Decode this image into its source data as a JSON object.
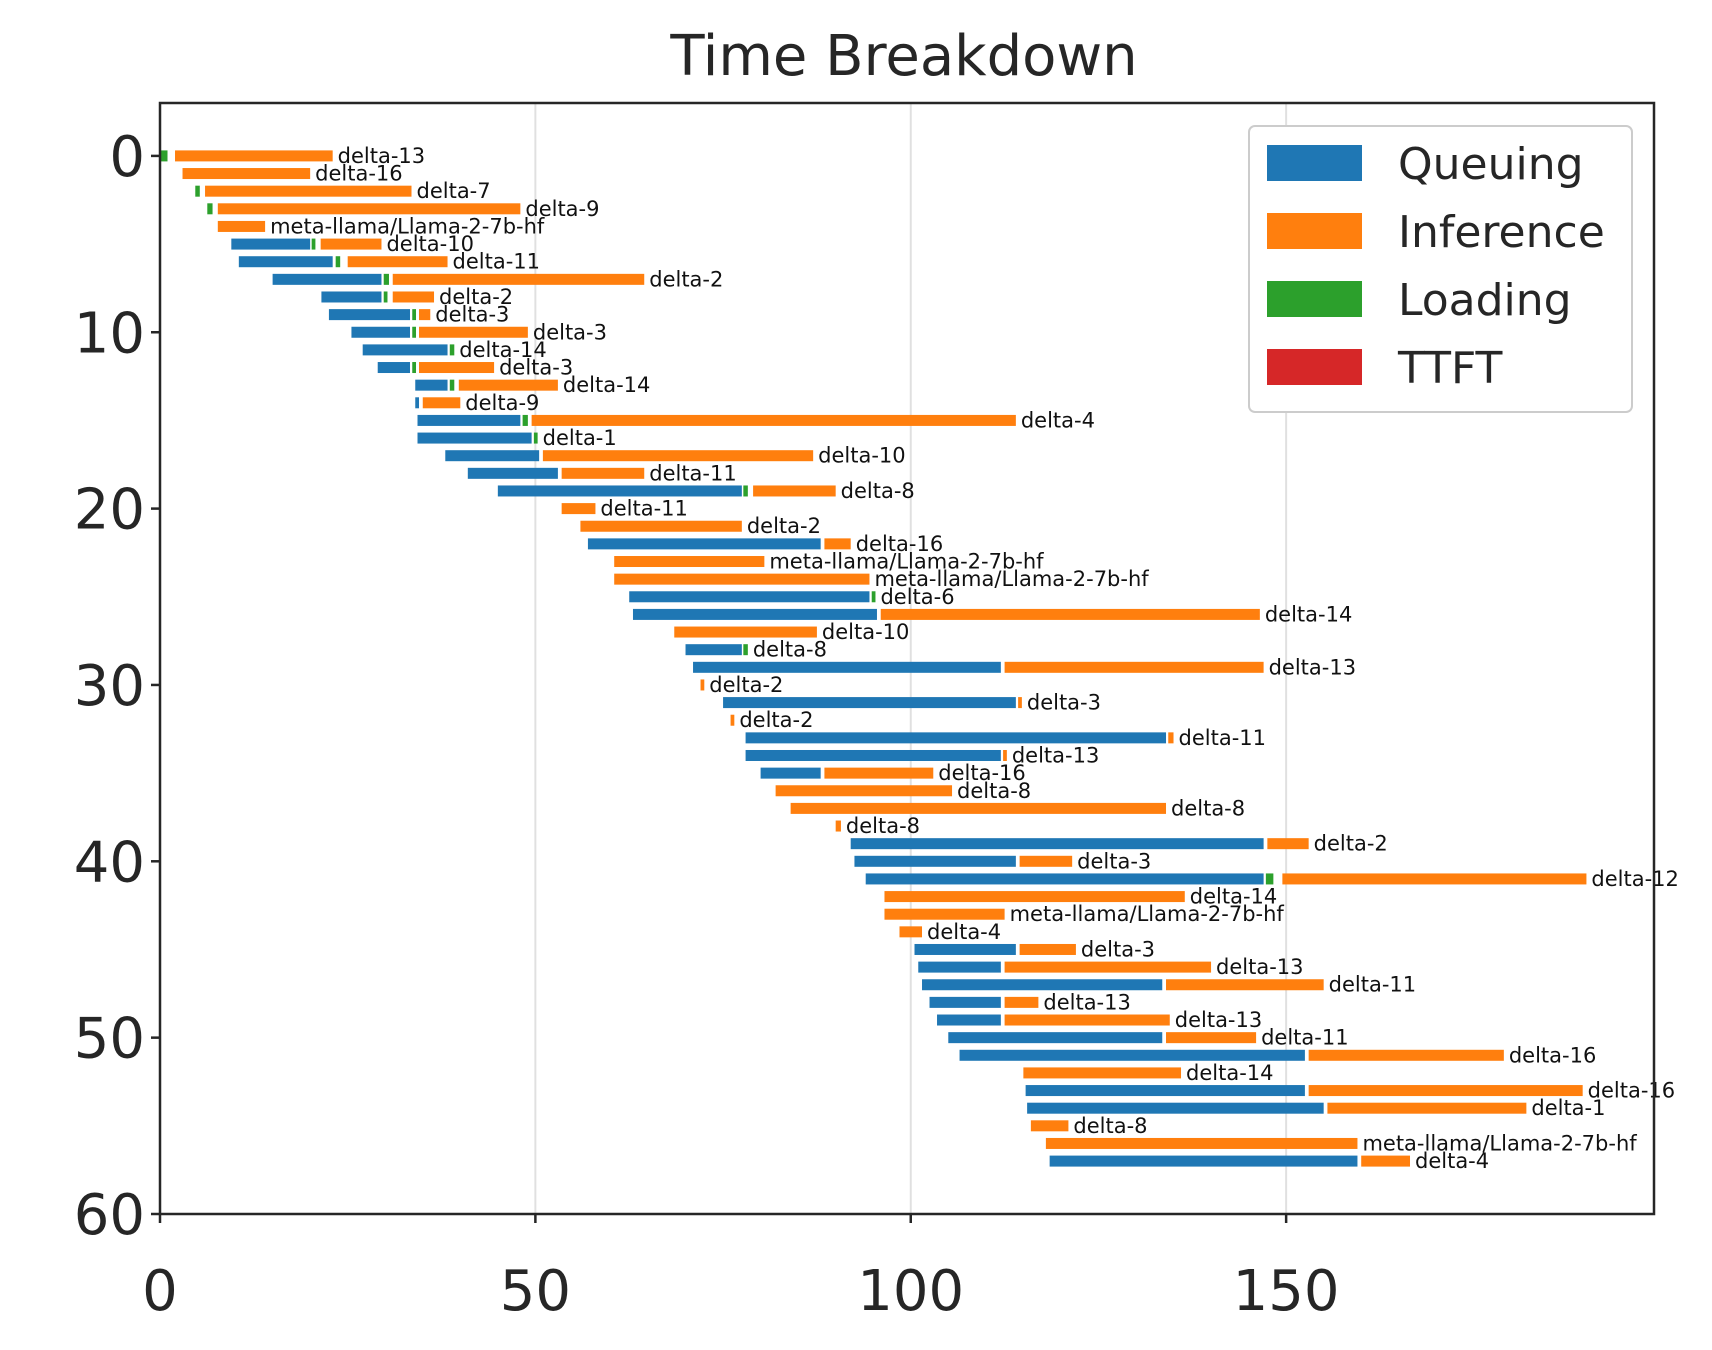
{
  "chart_data": {
    "type": "gantt",
    "title": "Time Breakdown",
    "xlabel": "",
    "ylabel": "",
    "xlim": [
      0,
      199
    ],
    "ylim": [
      60,
      -3
    ],
    "x_ticks": [
      0,
      50,
      100,
      150
    ],
    "y_ticks": [
      0,
      10,
      20,
      30,
      40,
      50,
      60
    ],
    "grid": "vertical",
    "legend_position": "top-right",
    "legend": [
      {
        "name": "Queuing",
        "color": "#1f77b4"
      },
      {
        "name": "Inference",
        "color": "#ff7f0e"
      },
      {
        "name": "Loading",
        "color": "#2ca02c"
      },
      {
        "name": "TTFT",
        "color": "#d62728"
      }
    ],
    "tasks": [
      {
        "row": 0,
        "label": "delta-13",
        "segments": [
          [
            "L",
            0,
            1
          ],
          [
            "I",
            2,
            23
          ]
        ]
      },
      {
        "row": 1,
        "label": "delta-16",
        "segments": [
          [
            "I",
            3,
            20
          ]
        ]
      },
      {
        "row": 2,
        "label": "delta-7",
        "segments": [
          [
            "L",
            4.7,
            5.3
          ],
          [
            "I",
            6,
            33.5
          ]
        ]
      },
      {
        "row": 3,
        "label": "delta-9",
        "segments": [
          [
            "L",
            6.3,
            7
          ],
          [
            "I",
            7.7,
            48
          ]
        ]
      },
      {
        "row": 4,
        "label": "meta-llama/Llama-2-7b-hf",
        "segments": [
          [
            "I",
            7.7,
            14
          ]
        ]
      },
      {
        "row": 5,
        "label": "delta-10",
        "segments": [
          [
            "Q",
            9.5,
            20
          ],
          [
            "L",
            20.2,
            20.7
          ],
          [
            "I",
            21.4,
            29.5
          ]
        ]
      },
      {
        "row": 6,
        "label": "delta-11",
        "segments": [
          [
            "Q",
            10.5,
            23
          ],
          [
            "L",
            23.4,
            24
          ],
          [
            "I",
            25,
            38.3
          ]
        ]
      },
      {
        "row": 7,
        "label": "delta-2",
        "segments": [
          [
            "Q",
            15,
            29.5
          ],
          [
            "L",
            29.8,
            30.5
          ],
          [
            "I",
            31,
            64.5
          ]
        ]
      },
      {
        "row": 8,
        "label": "delta-2",
        "segments": [
          [
            "Q",
            21.5,
            29.5
          ],
          [
            "L",
            29.8,
            30.3
          ],
          [
            "I",
            31,
            36.5
          ]
        ]
      },
      {
        "row": 9,
        "label": "delta-3",
        "segments": [
          [
            "Q",
            22.5,
            33.3
          ],
          [
            "L",
            33.6,
            34.1
          ],
          [
            "I",
            34.5,
            36
          ]
        ]
      },
      {
        "row": 10,
        "label": "delta-3",
        "segments": [
          [
            "Q",
            25.5,
            33.3
          ],
          [
            "L",
            33.6,
            34.1
          ],
          [
            "I",
            34.5,
            49
          ]
        ]
      },
      {
        "row": 11,
        "label": "delta-14",
        "segments": [
          [
            "Q",
            27,
            38.3
          ],
          [
            "L",
            38.6,
            39.2
          ]
        ]
      },
      {
        "row": 12,
        "label": "delta-3",
        "segments": [
          [
            "Q",
            29,
            33.3
          ],
          [
            "L",
            33.6,
            34.1
          ],
          [
            "I",
            34.5,
            44.5
          ]
        ]
      },
      {
        "row": 13,
        "label": "delta-14",
        "segments": [
          [
            "Q",
            34,
            38.3
          ],
          [
            "L",
            38.6,
            39.2
          ],
          [
            "I",
            39.8,
            53
          ]
        ]
      },
      {
        "row": 14,
        "label": "delta-9",
        "segments": [
          [
            "Q",
            34,
            34.5
          ],
          [
            "I",
            35,
            40
          ]
        ]
      },
      {
        "row": 15,
        "label": "delta-4",
        "segments": [
          [
            "Q",
            34.3,
            48
          ],
          [
            "L",
            48.3,
            49
          ],
          [
            "I",
            49.5,
            114
          ]
        ]
      },
      {
        "row": 16,
        "label": "delta-1",
        "segments": [
          [
            "Q",
            34.3,
            49.5
          ],
          [
            "L",
            49.8,
            50.3
          ]
        ]
      },
      {
        "row": 17,
        "label": "delta-10",
        "segments": [
          [
            "Q",
            38,
            50.5
          ],
          [
            "I",
            51,
            87
          ]
        ]
      },
      {
        "row": 18,
        "label": "delta-11",
        "segments": [
          [
            "Q",
            41,
            53
          ],
          [
            "I",
            53.5,
            64.5
          ]
        ]
      },
      {
        "row": 19,
        "label": "delta-8",
        "segments": [
          [
            "Q",
            45,
            77.5
          ],
          [
            "L",
            77.7,
            78.3
          ],
          [
            "I",
            79,
            90
          ]
        ]
      },
      {
        "row": 20,
        "label": "delta-11",
        "segments": [
          [
            "I",
            53.5,
            58
          ]
        ]
      },
      {
        "row": 21,
        "label": "delta-2",
        "segments": [
          [
            "I",
            56,
            77.5
          ]
        ]
      },
      {
        "row": 22,
        "label": "delta-16",
        "segments": [
          [
            "Q",
            57,
            88
          ],
          [
            "I",
            88.5,
            92
          ]
        ]
      },
      {
        "row": 23,
        "label": "meta-llama/Llama-2-7b-hf",
        "segments": [
          [
            "I",
            60.5,
            80.5
          ]
        ]
      },
      {
        "row": 24,
        "label": "meta-llama/Llama-2-7b-hf",
        "segments": [
          [
            "I",
            60.5,
            94.5
          ]
        ]
      },
      {
        "row": 25,
        "label": "delta-6",
        "segments": [
          [
            "Q",
            62.5,
            94.5
          ],
          [
            "L",
            94.8,
            95.3
          ]
        ]
      },
      {
        "row": 26,
        "label": "delta-14",
        "segments": [
          [
            "Q",
            63,
            95.5
          ],
          [
            "I",
            96,
            146.5
          ]
        ]
      },
      {
        "row": 27,
        "label": "delta-10",
        "segments": [
          [
            "I",
            68.5,
            87.5
          ]
        ]
      },
      {
        "row": 28,
        "label": "delta-8",
        "segments": [
          [
            "Q",
            70,
            77.5
          ],
          [
            "L",
            77.7,
            78.3
          ]
        ]
      },
      {
        "row": 29,
        "label": "delta-13",
        "segments": [
          [
            "Q",
            71,
            112
          ],
          [
            "I",
            112.5,
            147
          ]
        ]
      },
      {
        "row": 30,
        "label": "delta-2",
        "segments": [
          [
            "I",
            72,
            72.5
          ]
        ]
      },
      {
        "row": 31,
        "label": "delta-3",
        "segments": [
          [
            "Q",
            75,
            114
          ],
          [
            "I",
            114.3,
            114.8
          ]
        ]
      },
      {
        "row": 32,
        "label": "delta-2",
        "segments": [
          [
            "I",
            76,
            76.5
          ]
        ]
      },
      {
        "row": 33,
        "label": "delta-11",
        "segments": [
          [
            "Q",
            78,
            134
          ],
          [
            "I",
            134.3,
            135
          ]
        ]
      },
      {
        "row": 34,
        "label": "delta-13",
        "segments": [
          [
            "Q",
            78,
            112
          ],
          [
            "I",
            112.3,
            112.8
          ]
        ]
      },
      {
        "row": 35,
        "label": "delta-16",
        "segments": [
          [
            "Q",
            80,
            88
          ],
          [
            "I",
            88.5,
            103
          ]
        ]
      },
      {
        "row": 36,
        "label": "delta-8",
        "segments": [
          [
            "I",
            82,
            105.5
          ]
        ]
      },
      {
        "row": 37,
        "label": "delta-8",
        "segments": [
          [
            "I",
            84,
            134
          ]
        ]
      },
      {
        "row": 38,
        "label": "delta-8",
        "segments": [
          [
            "I",
            90,
            90.7
          ]
        ]
      },
      {
        "row": 39,
        "label": "delta-2",
        "segments": [
          [
            "Q",
            92,
            147
          ],
          [
            "I",
            147.5,
            153
          ]
        ]
      },
      {
        "row": 40,
        "label": "delta-3",
        "segments": [
          [
            "Q",
            92.5,
            114
          ],
          [
            "I",
            114.5,
            121.5
          ]
        ]
      },
      {
        "row": 41,
        "label": "delta-12",
        "segments": [
          [
            "Q",
            94,
            147
          ],
          [
            "L",
            147.3,
            148.3
          ],
          [
            "I",
            149.5,
            190
          ]
        ]
      },
      {
        "row": 42,
        "label": "delta-14",
        "segments": [
          [
            "I",
            96.5,
            136.5
          ]
        ]
      },
      {
        "row": 43,
        "label": "meta-llama/Llama-2-7b-hf",
        "segments": [
          [
            "I",
            96.5,
            112.5
          ]
        ]
      },
      {
        "row": 44,
        "label": "delta-4",
        "segments": [
          [
            "I",
            98.5,
            101.5
          ]
        ]
      },
      {
        "row": 45,
        "label": "delta-3",
        "segments": [
          [
            "Q",
            100.5,
            114
          ],
          [
            "I",
            114.5,
            122
          ]
        ]
      },
      {
        "row": 46,
        "label": "delta-13",
        "segments": [
          [
            "Q",
            101,
            112
          ],
          [
            "I",
            112.5,
            140
          ]
        ]
      },
      {
        "row": 47,
        "label": "delta-11",
        "segments": [
          [
            "Q",
            101.5,
            133.5
          ],
          [
            "I",
            134,
            155
          ]
        ]
      },
      {
        "row": 48,
        "label": "delta-13",
        "segments": [
          [
            "Q",
            102.5,
            112
          ],
          [
            "I",
            112.5,
            117
          ]
        ]
      },
      {
        "row": 49,
        "label": "delta-13",
        "segments": [
          [
            "Q",
            103.5,
            112
          ],
          [
            "I",
            112.5,
            134.5
          ]
        ]
      },
      {
        "row": 50,
        "label": "delta-11",
        "segments": [
          [
            "Q",
            105,
            133.5
          ],
          [
            "I",
            134,
            146
          ]
        ]
      },
      {
        "row": 51,
        "label": "delta-16",
        "segments": [
          [
            "Q",
            106.5,
            152.5
          ],
          [
            "I",
            153,
            179
          ]
        ]
      },
      {
        "row": 52,
        "label": "delta-14",
        "segments": [
          [
            "I",
            115,
            136
          ]
        ]
      },
      {
        "row": 53,
        "label": "delta-16",
        "segments": [
          [
            "Q",
            115.3,
            152.5
          ],
          [
            "I",
            153,
            189.5
          ]
        ]
      },
      {
        "row": 54,
        "label": "delta-1",
        "segments": [
          [
            "Q",
            115.5,
            155
          ],
          [
            "I",
            155.5,
            182
          ]
        ]
      },
      {
        "row": 55,
        "label": "delta-8",
        "segments": [
          [
            "I",
            116,
            121
          ]
        ]
      },
      {
        "row": 56,
        "label": "meta-llama/Llama-2-7b-hf",
        "segments": [
          [
            "I",
            118,
            159.5
          ]
        ]
      },
      {
        "row": 57,
        "label": "delta-4",
        "segments": [
          [
            "Q",
            118.5,
            159.5
          ],
          [
            "I",
            160,
            166.5
          ]
        ]
      }
    ]
  }
}
